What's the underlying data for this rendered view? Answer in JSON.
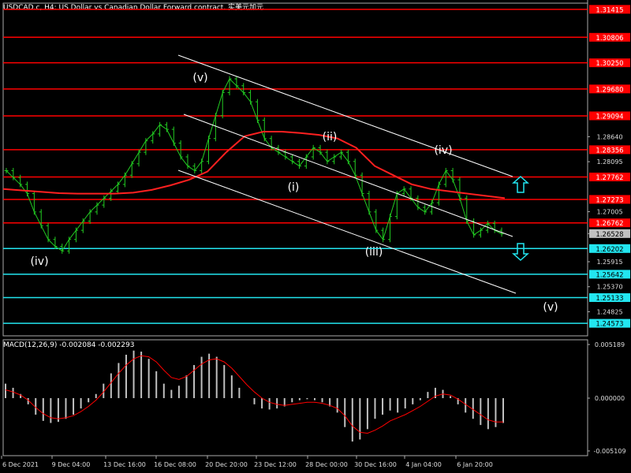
{
  "header": {
    "symbol_title": "USDCAD.c, H4: US Dollar vs Canadian Dollar Forward contract. 实美元加元"
  },
  "chart_data": [
    {
      "type": "line",
      "title": "",
      "ylim": [
        1.243,
        1.3155
      ],
      "y_ticks": [
        1.2864,
        1.28095,
        1.27005,
        1.26528,
        1.25915,
        1.2537,
        1.24825
      ],
      "x_ticks": [
        "6 Dec 2021",
        "9 Dec 04:00",
        "13 Dec 16:00",
        "16 Dec 08:00",
        "20 Dec 20:00",
        "23 Dec 12:00",
        "28 Dec 00:00",
        "30 Dec 16:00",
        "4 Jan 04:00",
        "6 Jan 20:00"
      ],
      "current_price": {
        "value": 1.26528,
        "label": "1.26528"
      },
      "resistance_levels": [
        {
          "value": 1.31415,
          "label": "1.31415"
        },
        {
          "value": 1.30806,
          "label": "1.30806"
        },
        {
          "value": 1.3025,
          "label": "1.30250"
        },
        {
          "value": 1.2968,
          "label": "1.29680"
        },
        {
          "value": 1.29094,
          "label": "1.29094"
        },
        {
          "value": 1.28356,
          "label": "1.28356"
        },
        {
          "value": 1.27762,
          "label": "1.27762"
        },
        {
          "value": 1.27273,
          "label": "1.27273"
        },
        {
          "value": 1.26762,
          "label": "1.26762"
        }
      ],
      "support_levels": [
        {
          "value": 1.26202,
          "label": "1.26202"
        },
        {
          "value": 1.25642,
          "label": "1.25642"
        },
        {
          "value": 1.25133,
          "label": "1.25133"
        },
        {
          "value": 1.24573,
          "label": "1.24573"
        }
      ],
      "wave_labels": [
        "(iv)",
        "(v)",
        "(i)",
        "(ii)",
        "(iii)",
        "(iv)",
        "(v)"
      ],
      "series": [
        {
          "values": [
            1.279,
            1.2775,
            1.276,
            1.274,
            1.27,
            1.267,
            1.264,
            1.2625,
            1.2615,
            1.264,
            1.266,
            1.268,
            1.27,
            1.2715,
            1.273,
            1.2745,
            1.276,
            1.278,
            1.2805,
            1.283,
            1.2855,
            1.287,
            1.289,
            1.288,
            1.285,
            1.282,
            1.28,
            1.279,
            1.281,
            1.286,
            1.291,
            1.296,
            1.299,
            1.2975,
            1.296,
            1.294,
            1.29,
            1.286,
            1.284,
            1.283,
            1.282,
            1.281,
            1.28,
            1.282,
            1.284,
            1.283,
            1.281,
            1.282,
            1.283,
            1.281,
            1.278,
            1.274,
            1.27,
            1.266,
            1.264,
            1.269,
            1.274,
            1.275,
            1.273,
            1.271,
            1.27,
            1.272,
            1.276,
            1.279,
            1.277,
            1.273,
            1.268,
            1.265,
            1.266,
            1.2675,
            1.266,
            1.2652
          ]
        },
        {
          "values": [
            1.275,
            1.2747,
            1.2744,
            1.2741,
            1.274,
            1.274,
            1.274,
            1.2742,
            1.2748,
            1.2758,
            1.277,
            1.2788,
            1.283,
            1.2865,
            1.2875,
            1.2875,
            1.2872,
            1.2868,
            1.286,
            1.284,
            1.28,
            1.278,
            1.276,
            1.275,
            1.2745,
            1.274,
            1.2735,
            1.273
          ]
        }
      ]
    },
    {
      "type": "bar",
      "title": "MACD(12,26,9) -0.002084 -0.002293",
      "ylim": [
        -0.005109,
        0.005189
      ],
      "y_ticks": [
        0.005189,
        0.0,
        -0.005109
      ],
      "y_tick_labels": [
        "0.005189",
        "0.000000",
        "-0.005109"
      ],
      "histogram": [
        0.0014,
        0.001,
        0.0004,
        -0.0006,
        -0.0016,
        -0.0022,
        -0.0024,
        -0.0023,
        -0.002,
        -0.0016,
        -0.001,
        -0.0004,
        0.0004,
        0.0014,
        0.0024,
        0.0034,
        0.0042,
        0.0046,
        0.0045,
        0.0038,
        0.0026,
        0.0014,
        0.0008,
        0.0012,
        0.0022,
        0.0032,
        0.004,
        0.0043,
        0.004,
        0.0032,
        0.0022,
        0.001,
        0.0,
        -0.0006,
        -0.001,
        -0.0011,
        -0.001,
        -0.0008,
        -0.0004,
        -0.0002,
        -0.0001,
        -0.0002,
        -0.0004,
        -0.0008,
        -0.0014,
        -0.0028,
        -0.0042,
        -0.004,
        -0.003,
        -0.002,
        -0.0016,
        -0.0012,
        -0.0014,
        -0.001,
        -0.0006,
        -0.0002,
        0.0006,
        0.001,
        0.0008,
        0.0002,
        -0.0006,
        -0.0014,
        -0.002,
        -0.0026,
        -0.003,
        -0.0028,
        -0.0024
      ],
      "signal": [
        0.0008,
        0.0006,
        0.0003,
        -0.0002,
        -0.0009,
        -0.0015,
        -0.0019,
        -0.002,
        -0.0019,
        -0.0017,
        -0.0013,
        -0.0008,
        -0.0002,
        0.0006,
        0.0015,
        0.0024,
        0.0032,
        0.0038,
        0.0041,
        0.004,
        0.0035,
        0.0027,
        0.002,
        0.0018,
        0.0021,
        0.0027,
        0.0033,
        0.0037,
        0.0038,
        0.0035,
        0.0029,
        0.0021,
        0.0013,
        0.0006,
        0.0,
        -0.0004,
        -0.0006,
        -0.0007,
        -0.0006,
        -0.0005,
        -0.0004,
        -0.0004,
        -0.0005,
        -0.0007,
        -0.001,
        -0.0017,
        -0.0027,
        -0.0033,
        -0.0034,
        -0.0031,
        -0.0027,
        -0.0022,
        -0.0019,
        -0.0016,
        -0.0012,
        -0.0008,
        -0.0003,
        0.0002,
        0.0004,
        0.0003,
        -0.0001,
        -0.0006,
        -0.0011,
        -0.0016,
        -0.0021,
        -0.0023,
        -0.0023
      ]
    }
  ],
  "colors": {
    "resistance": "#ff0000",
    "support": "#22e6f0",
    "price_line": "#22cc22",
    "moving_average": "#ff2020",
    "channel": "#ffffff",
    "histogram": "#c0c0c0",
    "signal": "#ff0000",
    "arrows": "#22e6f0"
  },
  "icons": {
    "up_arrow": "arrow-up-outline-icon",
    "down_arrow": "arrow-down-outline-icon"
  }
}
